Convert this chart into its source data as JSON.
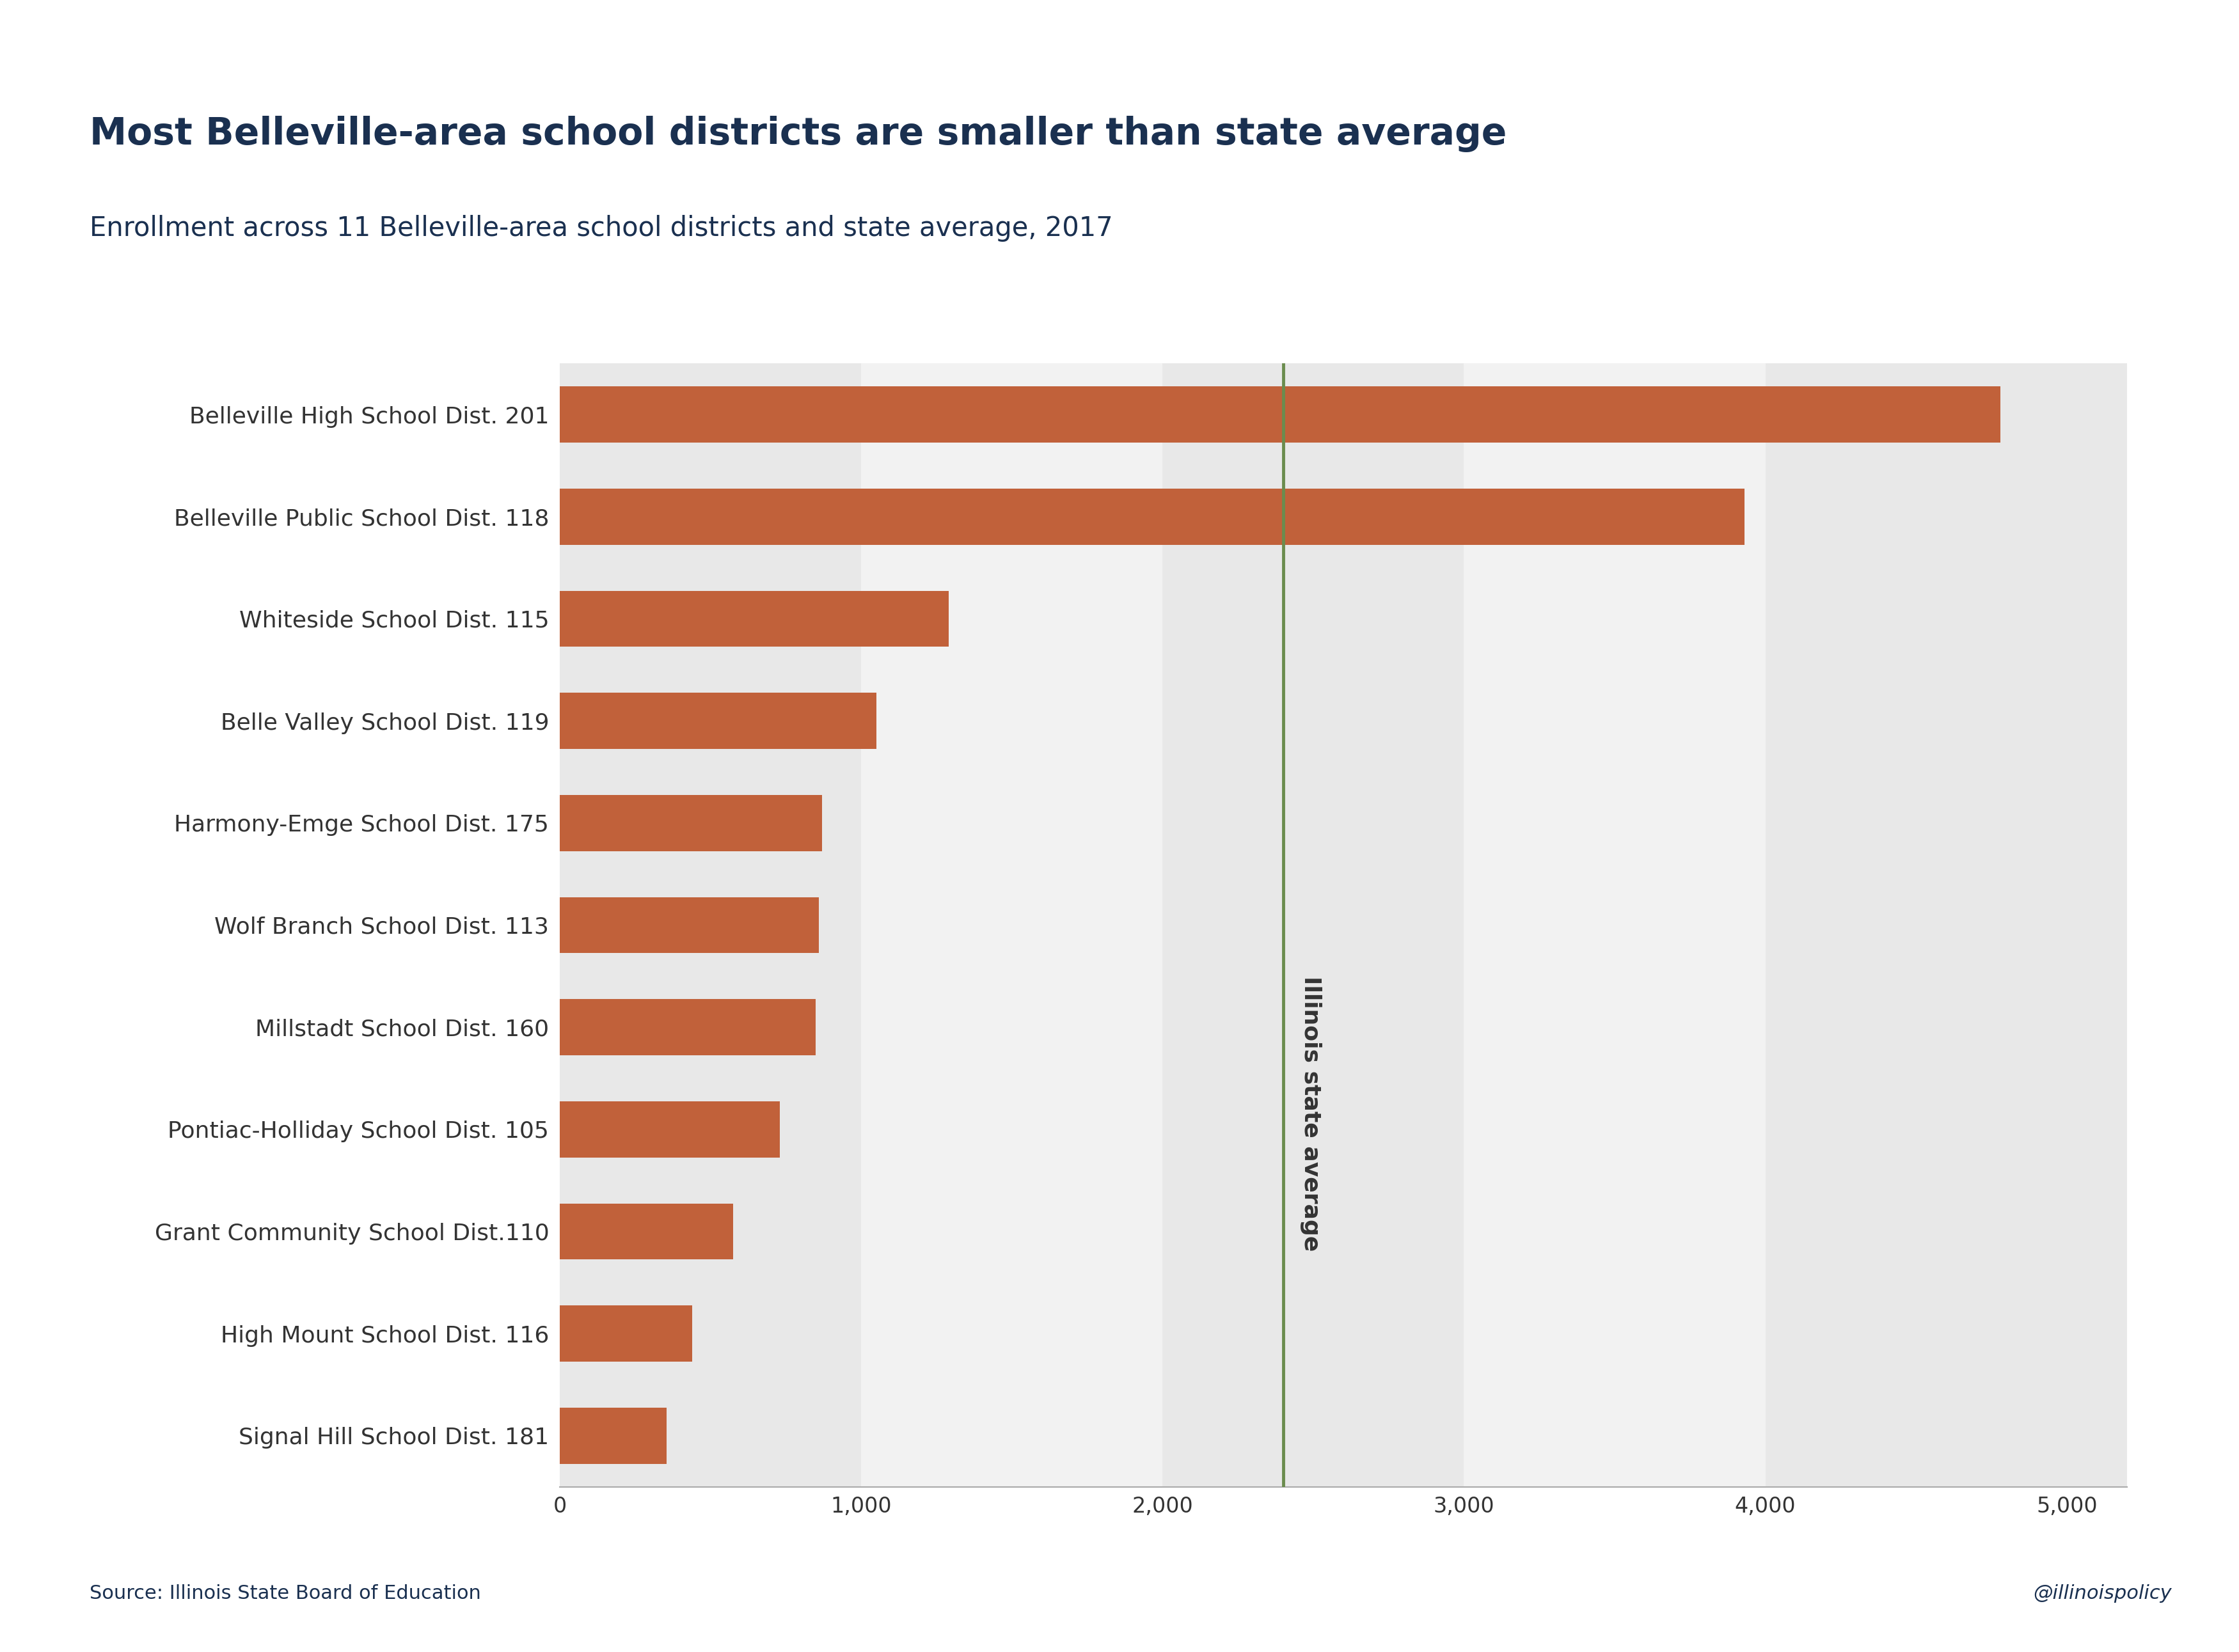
{
  "title": "Most Belleville-area school districts are smaller than state average",
  "subtitle": "Enrollment across 11 Belleville-area school districts and state average, 2017",
  "categories": [
    "Belleville High School Dist. 201",
    "Belleville Public School Dist. 118",
    "Whiteside School Dist. 115",
    "Belle Valley School Dist. 119",
    "Harmony-Emge School Dist. 175",
    "Wolf Branch School Dist. 113",
    "Millstadt School Dist. 160",
    "Pontiac-Holliday School Dist. 105",
    "Grant Community School Dist.110",
    "High Mount School Dist. 116",
    "Signal Hill School Dist. 181"
  ],
  "values": [
    4780,
    3930,
    1290,
    1050,
    870,
    860,
    850,
    730,
    575,
    440,
    355
  ],
  "bar_color": "#C1613A",
  "state_average": 2400,
  "state_avg_color": "#6B8C4E",
  "state_avg_label": "Illinois state average",
  "xlim": [
    0,
    5200
  ],
  "xticks": [
    0,
    1000,
    2000,
    3000,
    4000,
    5000
  ],
  "xtick_labels": [
    "0",
    "1,000",
    "2,000",
    "3,000",
    "4,000",
    "5,000"
  ],
  "background_color": "#ffffff",
  "title_color": "#1a3050",
  "subtitle_color": "#1a3050",
  "label_color": "#333333",
  "tick_color": "#333333",
  "source_text": "Source: Illinois State Board of Education",
  "watermark_text": "@illinoispolicy",
  "title_fontsize": 42,
  "subtitle_fontsize": 30,
  "label_fontsize": 26,
  "tick_fontsize": 24,
  "source_fontsize": 22,
  "band_colors": [
    "#e8e8e8",
    "#f2f2f2"
  ],
  "band_edges": [
    0,
    1000,
    2000,
    3000,
    4000,
    5200
  ]
}
